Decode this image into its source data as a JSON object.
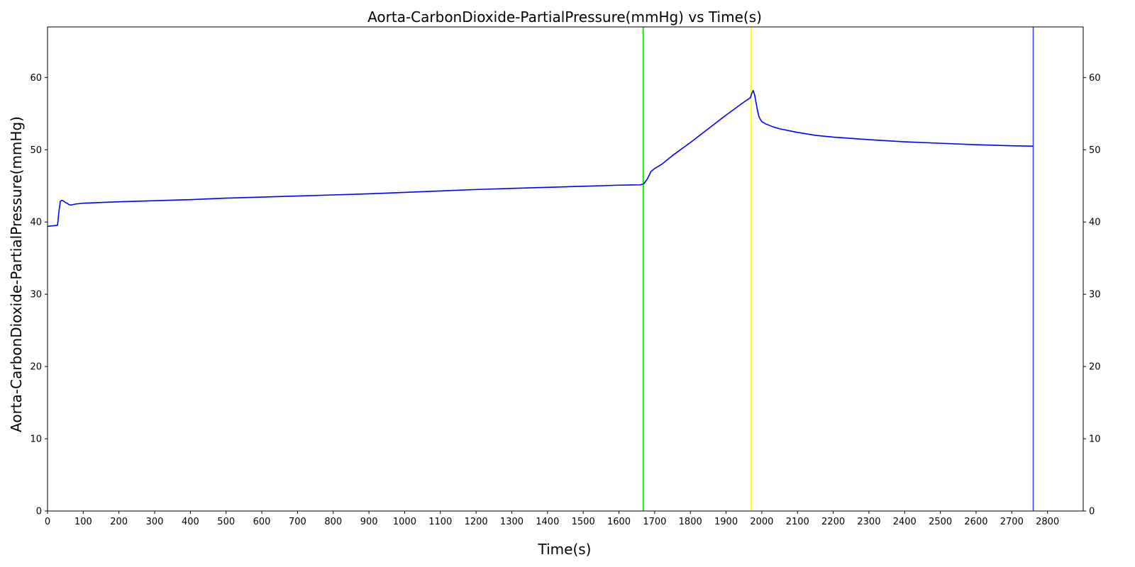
{
  "chart_data": {
    "type": "line",
    "title": "Aorta-CarbonDioxide-PartialPressure(mmHg) vs Time(s)",
    "xlabel": "Time(s)",
    "ylabel": "Aorta-CarbonDioxide-PartialPressure(mmHg)",
    "xlim": [
      0,
      2900
    ],
    "ylim": [
      0,
      67
    ],
    "xticks": [
      0,
      100,
      200,
      300,
      400,
      500,
      600,
      700,
      800,
      900,
      1000,
      1100,
      1200,
      1300,
      1400,
      1500,
      1600,
      1700,
      1800,
      1900,
      2000,
      2100,
      2200,
      2300,
      2400,
      2500,
      2600,
      2700,
      2800
    ],
    "yticks": [
      0,
      10,
      20,
      30,
      40,
      50,
      60
    ],
    "right_axis_ticks": true,
    "grid": false,
    "series": [
      {
        "color": "#0000ff",
        "x": [
          0,
          10,
          20,
          28,
          32,
          36,
          40,
          45,
          50,
          55,
          60,
          65,
          70,
          75,
          80,
          90,
          100,
          150,
          200,
          300,
          400,
          500,
          600,
          700,
          800,
          900,
          1000,
          1100,
          1200,
          1300,
          1400,
          1500,
          1600,
          1660,
          1670,
          1680,
          1690,
          1700,
          1720,
          1750,
          1800,
          1850,
          1900,
          1950,
          1968,
          1972,
          1976,
          1980,
          1984,
          1988,
          1992,
          1996,
          2000,
          2010,
          2030,
          2050,
          2100,
          2150,
          2200,
          2300,
          2400,
          2500,
          2600,
          2700,
          2760
        ],
        "y": [
          39.4,
          39.45,
          39.5,
          39.55,
          41.5,
          42.9,
          43.0,
          42.9,
          42.7,
          42.6,
          42.4,
          42.35,
          42.4,
          42.45,
          42.5,
          42.55,
          42.6,
          42.7,
          42.8,
          42.95,
          43.1,
          43.3,
          43.45,
          43.6,
          43.75,
          43.9,
          44.1,
          44.3,
          44.5,
          44.65,
          44.8,
          44.95,
          45.1,
          45.15,
          45.3,
          46.0,
          47.0,
          47.4,
          48.0,
          49.2,
          51.0,
          52.9,
          54.8,
          56.6,
          57.2,
          57.8,
          58.2,
          57.6,
          56.5,
          55.4,
          54.6,
          54.2,
          53.9,
          53.6,
          53.2,
          52.9,
          52.4,
          52.0,
          51.75,
          51.4,
          51.1,
          50.9,
          50.7,
          50.55,
          50.5
        ]
      }
    ],
    "vlines": [
      {
        "x": 1668,
        "color": "#00dd00"
      },
      {
        "x": 1970,
        "color": "#ffff00"
      },
      {
        "x": 2760,
        "color": "#4444ff"
      }
    ]
  }
}
